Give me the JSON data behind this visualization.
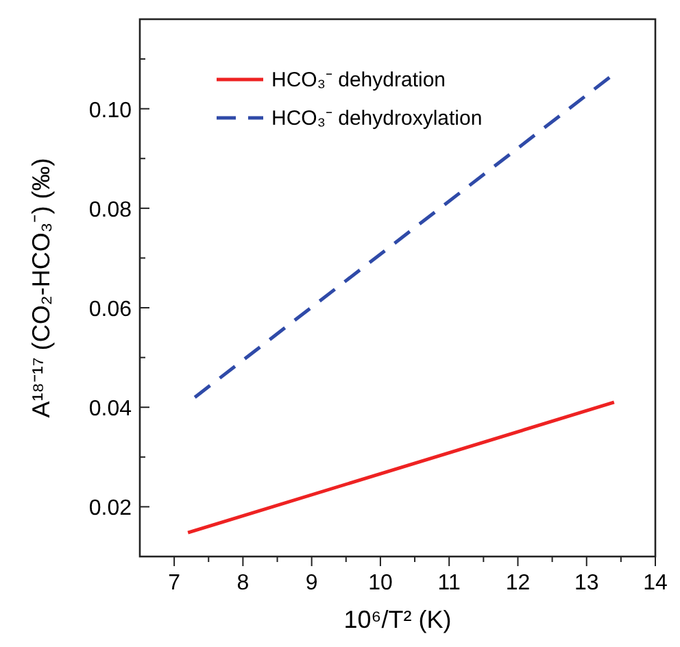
{
  "chart_data": {
    "type": "line",
    "xlabel": "10⁶/T² (K)",
    "ylabel": "A¹⁸⁻¹⁷ (CO₂-HCO₃⁻) (‰)",
    "xlim": [
      6.5,
      14
    ],
    "xticks": [
      7,
      {
        "value": 7.5,
        "label": null
      },
      8,
      {
        "value": 8.5,
        "label": null
      },
      9,
      {
        "value": 9.5,
        "label": null
      },
      10,
      {
        "value": 10.5,
        "label": null
      },
      11,
      {
        "value": 11.5,
        "label": null
      },
      12,
      {
        "value": 12.5,
        "label": null
      },
      13,
      {
        "value": 13.5,
        "label": null
      },
      14
    ],
    "ylim": [
      0.01,
      0.118
    ],
    "yticks": [
      {
        "value": 0.02,
        "label": "0.02"
      },
      {
        "value": 0.03,
        "label": null
      },
      {
        "value": 0.04,
        "label": "0.04"
      },
      {
        "value": 0.05,
        "label": null
      },
      {
        "value": 0.06,
        "label": "0.06"
      },
      {
        "value": 0.07,
        "label": null
      },
      {
        "value": 0.08,
        "label": "0.08"
      },
      {
        "value": 0.09,
        "label": null
      },
      {
        "value": 0.1,
        "label": "0.10"
      },
      {
        "value": 0.11,
        "label": null
      }
    ],
    "legend": "top",
    "grid": false,
    "series": [
      {
        "name": "HCO₃⁻ dehydration",
        "color": "#ee2222",
        "line_style": "solid",
        "x": [
          7.2,
          13.4
        ],
        "values": [
          0.0148,
          0.041
        ]
      },
      {
        "name": "HCO₃⁻ dehydroxylation",
        "color": "#2f4aa8",
        "line_style": "dashed",
        "x": [
          7.3,
          13.4
        ],
        "values": [
          0.042,
          0.107
        ]
      }
    ]
  }
}
